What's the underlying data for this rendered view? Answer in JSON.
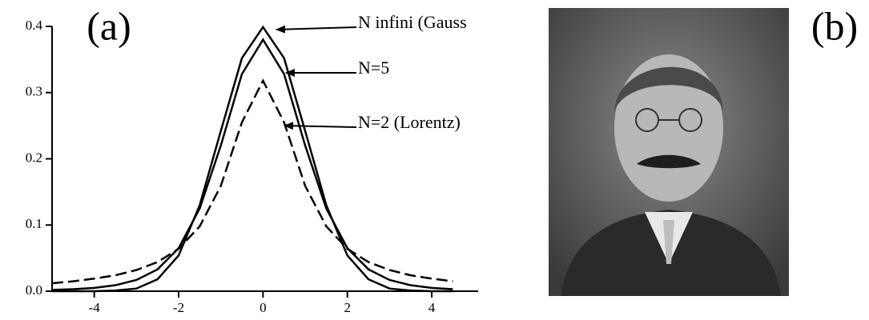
{
  "chart_data": {
    "type": "line",
    "x": [
      -5,
      -4.5,
      -4,
      -3.5,
      -3,
      -2.5,
      -2,
      -1.5,
      -1,
      -0.5,
      0,
      0.5,
      1,
      1.5,
      2,
      2.5,
      3,
      3.5,
      4,
      4.5
    ],
    "series": [
      {
        "name": "N infini (Gauss",
        "color": "#000000",
        "dashed": false,
        "values": [
          0,
          0,
          0,
          0.001,
          0.004,
          0.018,
          0.054,
          0.13,
          0.242,
          0.352,
          0.399,
          0.352,
          0.242,
          0.13,
          0.054,
          0.018,
          0.004,
          0.001,
          0,
          0
        ]
      },
      {
        "name": "N=5",
        "color": "#000000",
        "dashed": false,
        "values": [
          0.002,
          0.003,
          0.005,
          0.009,
          0.017,
          0.033,
          0.065,
          0.125,
          0.22,
          0.328,
          0.38,
          0.328,
          0.22,
          0.125,
          0.065,
          0.033,
          0.017,
          0.009,
          0.005,
          0.003
        ]
      },
      {
        "name": "N=2 (Lorentz)",
        "color": "#000000",
        "dashed": true,
        "values": [
          0.012,
          0.015,
          0.019,
          0.024,
          0.032,
          0.044,
          0.064,
          0.098,
          0.159,
          0.255,
          0.318,
          0.255,
          0.159,
          0.098,
          0.064,
          0.044,
          0.032,
          0.024,
          0.019,
          0.015
        ]
      }
    ],
    "xlim": [
      -5,
      5.1
    ],
    "xticks": [
      -4,
      -2,
      0,
      2,
      4
    ],
    "ylim": [
      0,
      0.4
    ],
    "yticks": [
      {
        "value": 0,
        "label": "0.0"
      },
      0.1,
      0.2,
      0.3,
      0.4
    ]
  },
  "panel_labels": [
    "(a)",
    "(b)"
  ]
}
